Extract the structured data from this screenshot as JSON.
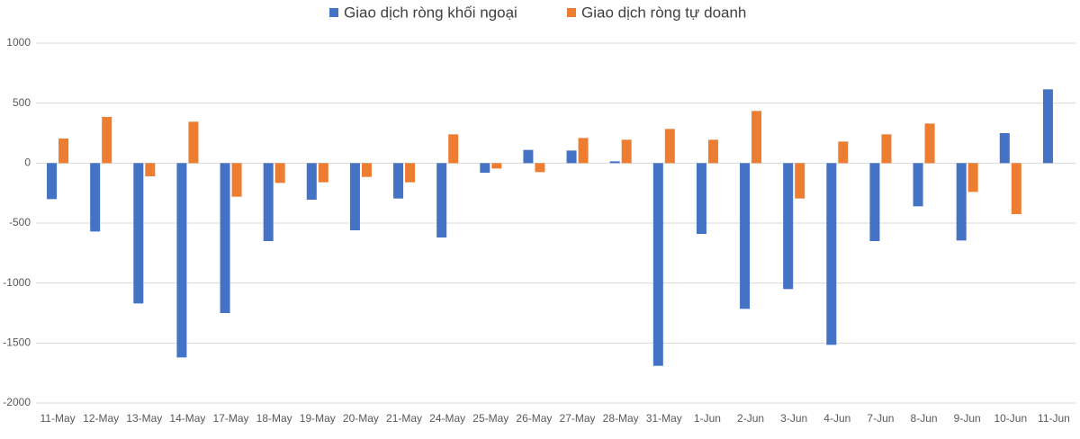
{
  "chart_data": {
    "type": "bar",
    "categories": [
      "11-May",
      "12-May",
      "13-May",
      "14-May",
      "17-May",
      "18-May",
      "19-May",
      "20-May",
      "21-May",
      "24-May",
      "25-May",
      "26-May",
      "27-May",
      "28-May",
      "31-May",
      "1-Jun",
      "2-Jun",
      "3-Jun",
      "4-Jun",
      "7-Jun",
      "8-Jun",
      "9-Jun",
      "10-Jun",
      "11-Jun"
    ],
    "series": [
      {
        "name": "Giao dịch ròng khối ngoại",
        "color": "#4472c4",
        "values": [
          -300,
          -570,
          -1170,
          -1620,
          -1250,
          -650,
          -305,
          -560,
          -295,
          -620,
          -80,
          110,
          105,
          15,
          -1690,
          -590,
          -1215,
          -1050,
          -1515,
          -650,
          -360,
          -645,
          250,
          615
        ]
      },
      {
        "name": "Giao dịch ròng tự doanh",
        "color": "#ed7d31",
        "values": [
          205,
          385,
          -110,
          345,
          -280,
          -165,
          -160,
          -115,
          -160,
          240,
          -45,
          -75,
          210,
          195,
          285,
          195,
          435,
          -295,
          180,
          240,
          330,
          -240,
          -425,
          null
        ]
      }
    ],
    "ylim": [
      -2000,
      1000
    ],
    "yticks": [
      -2000,
      -1500,
      -1000,
      -500,
      0,
      500,
      1000
    ],
    "grid": true,
    "legend": "top"
  }
}
